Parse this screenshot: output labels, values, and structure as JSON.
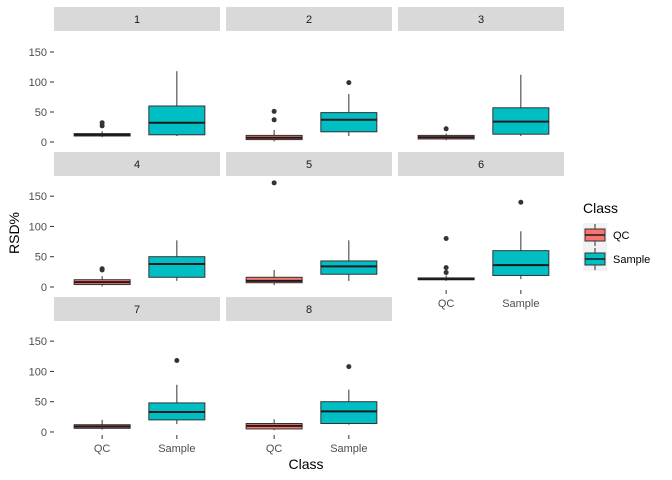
{
  "chart_data": {
    "type": "boxplot",
    "facet_labels": [
      "1",
      "2",
      "3",
      "4",
      "5",
      "6",
      "7",
      "8"
    ],
    "categories": [
      "QC",
      "Sample"
    ],
    "xlabel": "Class",
    "ylabel": "RSD%",
    "ylim": [
      -5,
      180
    ],
    "yticks": [
      0,
      50,
      100,
      150
    ],
    "legend": {
      "title": "Class",
      "position": "right",
      "entries": [
        {
          "name": "QC",
          "color": "#F8766D"
        },
        {
          "name": "Sample",
          "color": "#00BFC4"
        }
      ]
    },
    "grid": false,
    "facets": [
      {
        "label": "1",
        "boxes": [
          {
            "class": "QC",
            "min": 8,
            "q1": 10,
            "median": 12,
            "q3": 14,
            "max": 18,
            "outliers": [
              27,
              32
            ]
          },
          {
            "class": "Sample",
            "min": 10,
            "q1": 12,
            "median": 32,
            "q3": 60,
            "max": 118,
            "outliers": []
          }
        ]
      },
      {
        "label": "2",
        "boxes": [
          {
            "class": "QC",
            "min": 1,
            "q1": 4,
            "median": 7,
            "q3": 11,
            "max": 20,
            "outliers": [
              37,
              51
            ]
          },
          {
            "class": "Sample",
            "min": 10,
            "q1": 17,
            "median": 37,
            "q3": 49,
            "max": 80,
            "outliers": [
              99
            ]
          }
        ]
      },
      {
        "label": "3",
        "boxes": [
          {
            "class": "QC",
            "min": 3,
            "q1": 5,
            "median": 8,
            "q3": 11,
            "max": 14,
            "outliers": [
              22
            ]
          },
          {
            "class": "Sample",
            "min": 10,
            "q1": 13,
            "median": 34,
            "q3": 57,
            "max": 112,
            "outliers": []
          }
        ]
      },
      {
        "label": "4",
        "boxes": [
          {
            "class": "QC",
            "min": 1,
            "q1": 4,
            "median": 8,
            "q3": 12,
            "max": 18,
            "outliers": [
              28,
              30
            ]
          },
          {
            "class": "Sample",
            "min": 10,
            "q1": 16,
            "median": 38,
            "q3": 50,
            "max": 77,
            "outliers": []
          }
        ]
      },
      {
        "label": "5",
        "boxes": [
          {
            "class": "QC",
            "min": 3,
            "q1": 7,
            "median": 10,
            "q3": 16,
            "max": 28,
            "outliers": [
              172
            ]
          },
          {
            "class": "Sample",
            "min": 10,
            "q1": 21,
            "median": 34,
            "q3": 43,
            "max": 77,
            "outliers": []
          }
        ]
      },
      {
        "label": "6",
        "boxes": [
          {
            "class": "QC",
            "min": 10,
            "q1": 12,
            "median": 13,
            "q3": 15,
            "max": 19,
            "outliers": [
              24,
              32,
              80
            ]
          },
          {
            "class": "Sample",
            "min": 13,
            "q1": 19,
            "median": 36,
            "q3": 60,
            "max": 92,
            "outliers": [
              140
            ]
          }
        ]
      },
      {
        "label": "7",
        "boxes": [
          {
            "class": "QC",
            "min": 4,
            "q1": 6,
            "median": 9,
            "q3": 12,
            "max": 20,
            "outliers": []
          },
          {
            "class": "Sample",
            "min": 13,
            "q1": 20,
            "median": 33,
            "q3": 48,
            "max": 78,
            "outliers": [
              118
            ]
          }
        ]
      },
      {
        "label": "8",
        "boxes": [
          {
            "class": "QC",
            "min": 3,
            "q1": 5,
            "median": 10,
            "q3": 14,
            "max": 21,
            "outliers": []
          },
          {
            "class": "Sample",
            "min": 12,
            "q1": 14,
            "median": 34,
            "q3": 50,
            "max": 70,
            "outliers": [
              108
            ]
          }
        ]
      }
    ]
  }
}
